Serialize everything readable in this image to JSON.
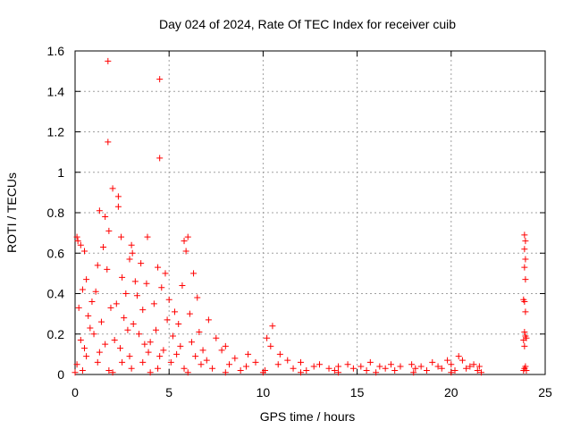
{
  "chart_data": {
    "type": "scatter",
    "title": "Day 024 of 2024, Rate Of TEC Index for receiver cuib",
    "xlabel": "GPS time / hours",
    "ylabel": "ROTI / TECUs",
    "xlim": [
      0,
      25
    ],
    "ylim": [
      0,
      1.6
    ],
    "x_ticks": [
      0,
      5,
      10,
      15,
      20,
      25
    ],
    "x_tick_labels": [
      "0",
      "5",
      "10",
      "15",
      "20",
      "25"
    ],
    "y_ticks": [
      0,
      0.2,
      0.4,
      0.6,
      0.8,
      1.0,
      1.2,
      1.4,
      1.6
    ],
    "y_tick_labels": [
      "0",
      "0.2",
      "0.4",
      "0.6",
      "0.8",
      "1",
      "1.2",
      "1.4",
      "1.6"
    ],
    "grid": true,
    "marker": "+",
    "marker_color": "#ff0000",
    "series": [
      {
        "name": "ROTI",
        "points": [
          [
            1.75,
            1.55
          ],
          [
            4.5,
            1.46
          ],
          [
            1.75,
            1.15
          ],
          [
            4.5,
            1.07
          ],
          [
            2.0,
            0.92
          ],
          [
            2.3,
            0.88
          ],
          [
            2.3,
            0.83
          ],
          [
            1.3,
            0.81
          ],
          [
            1.6,
            0.78
          ],
          [
            1.8,
            0.71
          ],
          [
            0.1,
            0.68
          ],
          [
            0.15,
            0.66
          ],
          [
            3.85,
            0.68
          ],
          [
            2.45,
            0.68
          ],
          [
            6.0,
            0.68
          ],
          [
            5.8,
            0.66
          ],
          [
            0.3,
            0.64
          ],
          [
            3.0,
            0.64
          ],
          [
            1.5,
            0.63
          ],
          [
            0.5,
            0.61
          ],
          [
            3.05,
            0.6
          ],
          [
            5.9,
            0.61
          ],
          [
            2.9,
            0.57
          ],
          [
            3.5,
            0.55
          ],
          [
            4.4,
            0.53
          ],
          [
            1.2,
            0.54
          ],
          [
            1.7,
            0.52
          ],
          [
            6.3,
            0.5
          ],
          [
            4.8,
            0.5
          ],
          [
            2.5,
            0.48
          ],
          [
            0.6,
            0.47
          ],
          [
            3.2,
            0.46
          ],
          [
            3.8,
            0.45
          ],
          [
            5.7,
            0.44
          ],
          [
            4.6,
            0.43
          ],
          [
            0.4,
            0.42
          ],
          [
            1.1,
            0.41
          ],
          [
            2.7,
            0.4
          ],
          [
            3.3,
            0.39
          ],
          [
            6.5,
            0.38
          ],
          [
            5.0,
            0.37
          ],
          [
            0.9,
            0.36
          ],
          [
            2.2,
            0.35
          ],
          [
            4.2,
            0.35
          ],
          [
            0.2,
            0.33
          ],
          [
            1.9,
            0.33
          ],
          [
            3.6,
            0.32
          ],
          [
            5.3,
            0.31
          ],
          [
            6.1,
            0.3
          ],
          [
            0.7,
            0.29
          ],
          [
            2.6,
            0.28
          ],
          [
            4.9,
            0.27
          ],
          [
            7.1,
            0.27
          ],
          [
            1.4,
            0.26
          ],
          [
            3.1,
            0.25
          ],
          [
            5.5,
            0.25
          ],
          [
            10.5,
            0.24
          ],
          [
            0.8,
            0.23
          ],
          [
            2.8,
            0.22
          ],
          [
            4.3,
            0.22
          ],
          [
            6.6,
            0.21
          ],
          [
            1.0,
            0.2
          ],
          [
            3.4,
            0.2
          ],
          [
            5.2,
            0.19
          ],
          [
            7.5,
            0.18
          ],
          [
            10.2,
            0.18
          ],
          [
            0.3,
            0.17
          ],
          [
            2.1,
            0.17
          ],
          [
            4.0,
            0.16
          ],
          [
            6.2,
            0.16
          ],
          [
            1.6,
            0.15
          ],
          [
            3.7,
            0.15
          ],
          [
            5.6,
            0.14
          ],
          [
            8.0,
            0.14
          ],
          [
            10.4,
            0.14
          ],
          [
            0.5,
            0.13
          ],
          [
            2.4,
            0.13
          ],
          [
            4.7,
            0.12
          ],
          [
            6.8,
            0.12
          ],
          [
            7.8,
            0.12
          ],
          [
            1.3,
            0.11
          ],
          [
            3.9,
            0.11
          ],
          [
            5.4,
            0.1
          ],
          [
            9.2,
            0.1
          ],
          [
            10.9,
            0.1
          ],
          [
            0.6,
            0.09
          ],
          [
            2.9,
            0.09
          ],
          [
            4.5,
            0.09
          ],
          [
            6.4,
            0.09
          ],
          [
            8.5,
            0.08
          ],
          [
            11.3,
            0.07
          ],
          [
            12.0,
            0.06
          ],
          [
            13.0,
            0.05
          ],
          [
            14.5,
            0.05
          ],
          [
            15.7,
            0.06
          ],
          [
            16.8,
            0.05
          ],
          [
            17.9,
            0.05
          ],
          [
            19.0,
            0.06
          ],
          [
            19.8,
            0.07
          ],
          [
            20.4,
            0.09
          ],
          [
            20.6,
            0.07
          ],
          [
            21.2,
            0.05
          ],
          [
            21.5,
            0.04
          ],
          [
            7.0,
            0.07
          ],
          [
            9.6,
            0.06
          ],
          [
            10.8,
            0.05
          ],
          [
            12.7,
            0.04
          ],
          [
            14.0,
            0.04
          ],
          [
            15.2,
            0.04
          ],
          [
            16.2,
            0.04
          ],
          [
            17.3,
            0.04
          ],
          [
            18.4,
            0.04
          ],
          [
            19.3,
            0.04
          ],
          [
            20.0,
            0.05
          ],
          [
            21.0,
            0.04
          ],
          [
            0.1,
            0.05
          ],
          [
            1.2,
            0.06
          ],
          [
            2.5,
            0.06
          ],
          [
            3.6,
            0.06
          ],
          [
            5.1,
            0.06
          ],
          [
            6.7,
            0.05
          ],
          [
            8.2,
            0.05
          ],
          [
            9.1,
            0.04
          ],
          [
            11.6,
            0.03
          ],
          [
            13.5,
            0.03
          ],
          [
            14.8,
            0.03
          ],
          [
            16.5,
            0.03
          ],
          [
            18.1,
            0.03
          ],
          [
            19.5,
            0.03
          ],
          [
            20.8,
            0.03
          ],
          [
            0.4,
            0.02
          ],
          [
            1.8,
            0.02
          ],
          [
            3.0,
            0.03
          ],
          [
            4.4,
            0.03
          ],
          [
            5.8,
            0.03
          ],
          [
            7.3,
            0.03
          ],
          [
            8.8,
            0.02
          ],
          [
            10.1,
            0.02
          ],
          [
            12.3,
            0.02
          ],
          [
            13.8,
            0.02
          ],
          [
            15.5,
            0.02
          ],
          [
            17.0,
            0.02
          ],
          [
            18.7,
            0.02
          ],
          [
            20.2,
            0.02
          ],
          [
            21.4,
            0.02
          ],
          [
            0.0,
            0.01
          ],
          [
            2.0,
            0.01
          ],
          [
            4.0,
            0.01
          ],
          [
            6.0,
            0.01
          ],
          [
            8.0,
            0.01
          ],
          [
            10.0,
            0.01
          ],
          [
            12.0,
            0.01
          ],
          [
            14.0,
            0.01
          ],
          [
            16.0,
            0.01
          ],
          [
            18.0,
            0.01
          ],
          [
            20.0,
            0.01
          ],
          [
            21.6,
            0.01
          ],
          [
            23.9,
            0.69
          ],
          [
            23.95,
            0.66
          ],
          [
            23.9,
            0.62
          ],
          [
            23.95,
            0.57
          ],
          [
            23.9,
            0.53
          ],
          [
            23.95,
            0.47
          ],
          [
            23.85,
            0.37
          ],
          [
            23.9,
            0.36
          ],
          [
            23.95,
            0.31
          ],
          [
            23.9,
            0.21
          ],
          [
            23.95,
            0.19
          ],
          [
            23.85,
            0.17
          ],
          [
            24.0,
            0.18
          ],
          [
            23.9,
            0.14
          ],
          [
            23.95,
            0.04
          ],
          [
            23.9,
            0.03
          ],
          [
            24.0,
            0.02
          ],
          [
            23.85,
            0.02
          ]
        ]
      }
    ]
  }
}
